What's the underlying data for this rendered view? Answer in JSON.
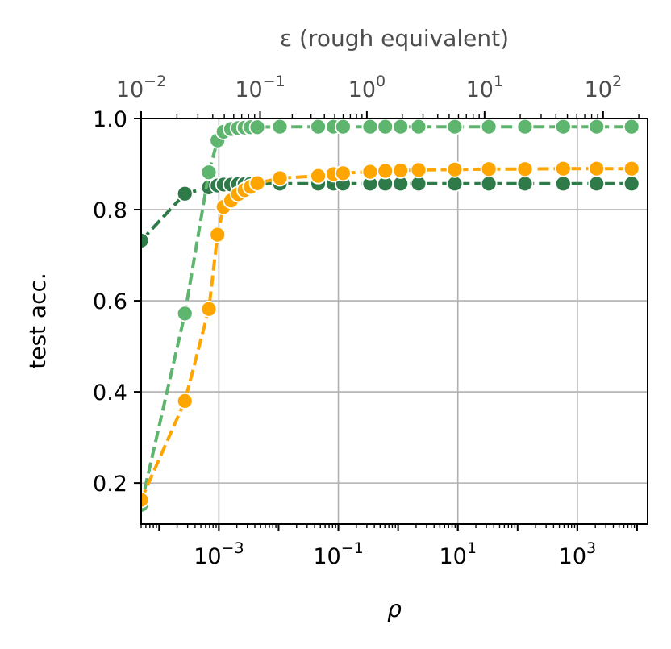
{
  "chart_data": {
    "type": "line",
    "xlabel": "ρ",
    "ylabel": "test acc.",
    "top_xlabel": "ε (rough equivalent)",
    "xscale": "log",
    "xlim": [
      5e-05,
      15000
    ],
    "ylim": [
      0.11,
      1.0
    ],
    "grid": true,
    "x_ticks": [
      {
        "base": "10",
        "exp": "−3",
        "value": 0.001
      },
      {
        "base": "10",
        "exp": "−1",
        "value": 0.1
      },
      {
        "base": "10",
        "exp": "1",
        "value": 10
      },
      {
        "base": "10",
        "exp": "3",
        "value": 1000
      }
    ],
    "y_ticks": [
      {
        "label": "0.2",
        "value": 0.2
      },
      {
        "label": "0.4",
        "value": 0.4
      },
      {
        "label": "0.6",
        "value": 0.6
      },
      {
        "label": "0.8",
        "value": 0.8
      },
      {
        "label": "1.0",
        "value": 1.0
      }
    ],
    "top_ticks": [
      {
        "base": "10",
        "exp": "−2",
        "rho": 5e-05
      },
      {
        "base": "10",
        "exp": "−1",
        "rho": 0.0049
      },
      {
        "base": "10",
        "exp": "0",
        "rho": 0.3
      },
      {
        "base": "10",
        "exp": "1",
        "rho": 28
      },
      {
        "base": "10",
        "exp": "2",
        "rho": 2700
      }
    ],
    "series": [
      {
        "color": "#2e7a48",
        "x": [
          5e-05,
          0.00027,
          0.00068,
          0.00095,
          0.0012,
          0.0016,
          0.0021,
          0.0027,
          0.0034,
          0.0044,
          0.0105,
          0.046,
          0.083,
          0.12,
          0.34,
          0.61,
          1.1,
          2.2,
          8.9,
          33,
          133,
          580,
          2100,
          8100
        ],
        "y": [
          0.732,
          0.835,
          0.849,
          0.853,
          0.855,
          0.855,
          0.856,
          0.856,
          0.857,
          0.857,
          0.857,
          0.857,
          0.857,
          0.857,
          0.857,
          0.857,
          0.857,
          0.857,
          0.857,
          0.857,
          0.857,
          0.857,
          0.857,
          0.857
        ]
      },
      {
        "color": "#5db56e",
        "x": [
          5e-05,
          0.00027,
          0.00068,
          0.00095,
          0.0012,
          0.0016,
          0.0021,
          0.0027,
          0.0034,
          0.0044,
          0.0105,
          0.046,
          0.083,
          0.12,
          0.34,
          0.61,
          1.1,
          2.2,
          8.9,
          33,
          133,
          580,
          2100,
          8100
        ],
        "y": [
          0.152,
          0.572,
          0.882,
          0.952,
          0.971,
          0.977,
          0.979,
          0.98,
          0.981,
          0.981,
          0.982,
          0.982,
          0.982,
          0.982,
          0.982,
          0.982,
          0.982,
          0.982,
          0.982,
          0.982,
          0.982,
          0.982,
          0.982,
          0.982
        ]
      },
      {
        "color": "#ffa500",
        "x": [
          5e-05,
          0.00027,
          0.00068,
          0.00095,
          0.0012,
          0.0016,
          0.0021,
          0.0027,
          0.0034,
          0.0044,
          0.0105,
          0.046,
          0.083,
          0.12,
          0.34,
          0.61,
          1.1,
          2.2,
          8.9,
          33,
          133,
          580,
          2100,
          8100
        ],
        "y": [
          0.163,
          0.38,
          0.582,
          0.745,
          0.806,
          0.82,
          0.834,
          0.843,
          0.85,
          0.858,
          0.869,
          0.874,
          0.878,
          0.88,
          0.883,
          0.885,
          0.886,
          0.887,
          0.888,
          0.889,
          0.889,
          0.89,
          0.89,
          0.89
        ]
      }
    ]
  }
}
